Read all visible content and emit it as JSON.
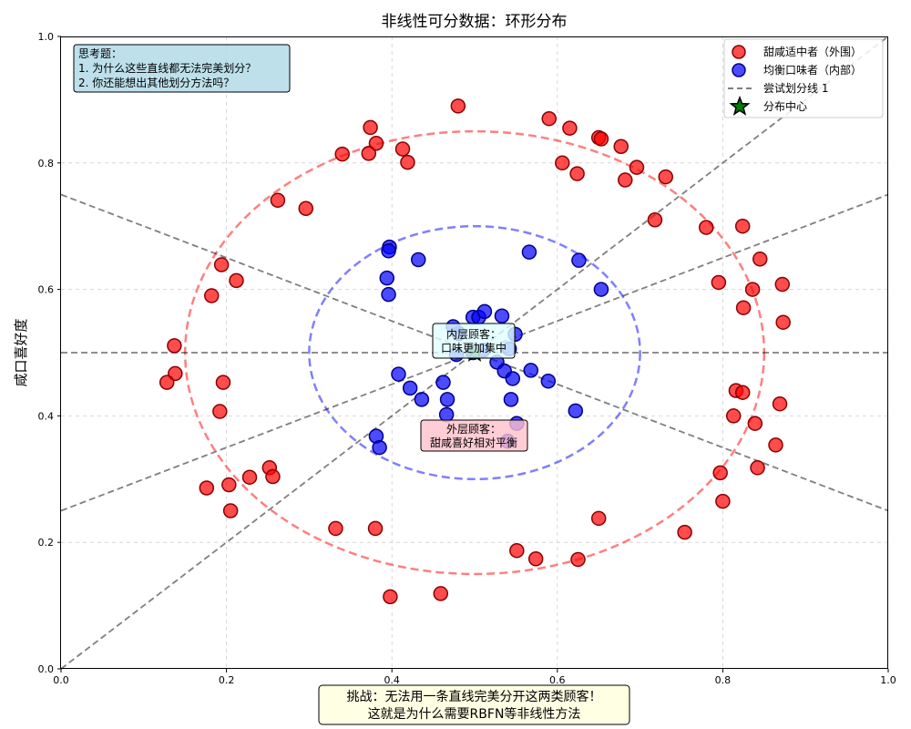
{
  "chart_data": {
    "type": "scatter",
    "title": "非线性可分数据：环形分布",
    "xlabel": "",
    "ylabel": "咸口喜好度",
    "xlim": [
      0,
      1
    ],
    "ylim": [
      0,
      1
    ],
    "xticks": [
      "0.0",
      "0.2",
      "0.4",
      "0.6",
      "0.8",
      "1.0"
    ],
    "yticks": [
      "0.0",
      "0.2",
      "0.4",
      "0.6",
      "0.8",
      "1.0"
    ],
    "grid": true,
    "legend_position": "top-right",
    "series": [
      {
        "name": "甜咸适中者（外围）",
        "color": "#ff0000",
        "points": [
          [
            0.48,
            0.89
          ],
          [
            0.59,
            0.87
          ],
          [
            0.615,
            0.855
          ],
          [
            0.65,
            0.84
          ],
          [
            0.653,
            0.838
          ],
          [
            0.677,
            0.826
          ],
          [
            0.696,
            0.793
          ],
          [
            0.682,
            0.773
          ],
          [
            0.731,
            0.778
          ],
          [
            0.606,
            0.8
          ],
          [
            0.624,
            0.783
          ],
          [
            0.374,
            0.856
          ],
          [
            0.381,
            0.831
          ],
          [
            0.372,
            0.815
          ],
          [
            0.34,
            0.814
          ],
          [
            0.413,
            0.822
          ],
          [
            0.419,
            0.801
          ],
          [
            0.262,
            0.741
          ],
          [
            0.296,
            0.728
          ],
          [
            0.718,
            0.71
          ],
          [
            0.78,
            0.698
          ],
          [
            0.824,
            0.7
          ],
          [
            0.194,
            0.639
          ],
          [
            0.212,
            0.614
          ],
          [
            0.182,
            0.59
          ],
          [
            0.845,
            0.648
          ],
          [
            0.795,
            0.611
          ],
          [
            0.836,
            0.6
          ],
          [
            0.872,
            0.608
          ],
          [
            0.825,
            0.571
          ],
          [
            0.873,
            0.548
          ],
          [
            0.137,
            0.511
          ],
          [
            0.138,
            0.467
          ],
          [
            0.128,
            0.453
          ],
          [
            0.196,
            0.453
          ],
          [
            0.192,
            0.407
          ],
          [
            0.816,
            0.44
          ],
          [
            0.824,
            0.437
          ],
          [
            0.869,
            0.419
          ],
          [
            0.813,
            0.4
          ],
          [
            0.839,
            0.388
          ],
          [
            0.864,
            0.354
          ],
          [
            0.252,
            0.318
          ],
          [
            0.256,
            0.304
          ],
          [
            0.228,
            0.303
          ],
          [
            0.203,
            0.291
          ],
          [
            0.176,
            0.286
          ],
          [
            0.205,
            0.25
          ],
          [
            0.842,
            0.318
          ],
          [
            0.797,
            0.31
          ],
          [
            0.8,
            0.265
          ],
          [
            0.332,
            0.222
          ],
          [
            0.38,
            0.222
          ],
          [
            0.65,
            0.238
          ],
          [
            0.754,
            0.216
          ],
          [
            0.551,
            0.187
          ],
          [
            0.574,
            0.174
          ],
          [
            0.625,
            0.173
          ],
          [
            0.398,
            0.114
          ],
          [
            0.459,
            0.119
          ]
        ]
      },
      {
        "name": "均衡口味者（内部）",
        "color": "#0000ff",
        "points": [
          [
            0.397,
            0.667
          ],
          [
            0.396,
            0.661
          ],
          [
            0.432,
            0.647
          ],
          [
            0.566,
            0.659
          ],
          [
            0.626,
            0.646
          ],
          [
            0.394,
            0.618
          ],
          [
            0.396,
            0.592
          ],
          [
            0.653,
            0.6
          ],
          [
            0.498,
            0.556
          ],
          [
            0.505,
            0.556
          ],
          [
            0.512,
            0.565
          ],
          [
            0.533,
            0.558
          ],
          [
            0.474,
            0.541
          ],
          [
            0.481,
            0.53
          ],
          [
            0.549,
            0.529
          ],
          [
            0.542,
            0.506
          ],
          [
            0.478,
            0.497
          ],
          [
            0.498,
            0.5
          ],
          [
            0.51,
            0.504
          ],
          [
            0.527,
            0.485
          ],
          [
            0.536,
            0.471
          ],
          [
            0.546,
            0.459
          ],
          [
            0.568,
            0.472
          ],
          [
            0.589,
            0.455
          ],
          [
            0.408,
            0.466
          ],
          [
            0.422,
            0.444
          ],
          [
            0.462,
            0.453
          ],
          [
            0.436,
            0.426
          ],
          [
            0.467,
            0.426
          ],
          [
            0.544,
            0.426
          ],
          [
            0.466,
            0.402
          ],
          [
            0.622,
            0.408
          ],
          [
            0.551,
            0.388
          ],
          [
            0.381,
            0.368
          ],
          [
            0.385,
            0.35
          ],
          [
            0.54,
            0.36
          ]
        ]
      }
    ],
    "lines_legend": "尝试划分线 1",
    "center_legend": "分布中心",
    "center": [
      0.5,
      0.5
    ],
    "division_lines": [
      [
        [
          0,
          0.5
        ],
        [
          1,
          0.5
        ]
      ],
      [
        [
          0,
          0
        ],
        [
          1,
          1
        ]
      ],
      [
        [
          0,
          0.75
        ],
        [
          1,
          0.25
        ]
      ],
      [
        [
          0,
          0.25
        ],
        [
          1,
          0.75
        ]
      ]
    ],
    "circles": [
      {
        "cx": 0.5,
        "cy": 0.5,
        "r": 0.35,
        "color": "#ff0000"
      },
      {
        "cx": 0.5,
        "cy": 0.5,
        "r": 0.2,
        "color": "#0000ff"
      }
    ],
    "annotations": {
      "think": [
        "思考题：",
        "1. 为什么这些直线都无法完美划分？",
        "2. 你还能想出其他划分方法吗？"
      ],
      "inner": [
        "内层顾客：",
        "口味更加集中"
      ],
      "outer": [
        "外层顾客：",
        "甜咸喜好相对平衡"
      ],
      "challenge": [
        "挑战：无法用一条直线完美分开这两类顾客！",
        "这就是为什么需要RBFN等非线性方法"
      ]
    }
  }
}
